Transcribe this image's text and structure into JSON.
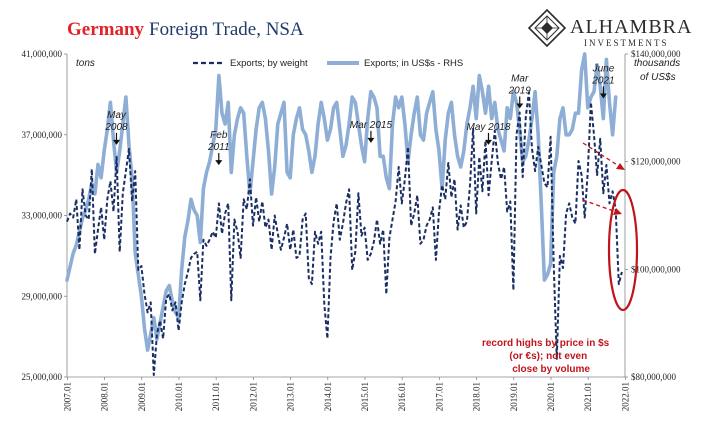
{
  "title_word1": "Germany",
  "title_rest": "Foreign Trade, NSA",
  "brand": {
    "name": "ALHAMBRA",
    "sub": "INVESTMENTS"
  },
  "colors": {
    "weight": "#1a2e62",
    "usd": "#8eaed6",
    "accent": "#c0141c",
    "title_red": "#e0242a",
    "title_blue": "#1f3a6b"
  },
  "chart_data": {
    "type": "line",
    "title": "Germany Foreign Trade, NSA",
    "left_axis": {
      "label": "tons",
      "ylim": [
        25000000,
        41000000
      ],
      "ticks": [
        "25,000,000",
        "29,000,000",
        "33,000,000",
        "37,000,000",
        "41,000,000"
      ]
    },
    "right_axis": {
      "label_line1": "thousands",
      "label_line2": "of US$s",
      "ylim": [
        80000000,
        140000000
      ],
      "ticks": [
        "$80,000,000",
        "$100,000,000",
        "$120,000,000",
        "$140,000,000"
      ]
    },
    "x_ticks": [
      "2007.01",
      "2008.01",
      "2009.01",
      "2010.01",
      "2011.01",
      "2012.01",
      "2013.01",
      "2014.01",
      "2015.01",
      "2016.01",
      "2017.01",
      "2018.01",
      "2019.01",
      "2020.01",
      "2021.01",
      "2022.01"
    ],
    "grid": false,
    "legend": "top-center",
    "series": [
      {
        "name": "Exports; by weight",
        "axis": "left",
        "style": "dashed",
        "x_start": 2007.0,
        "x_step": 0.0833333,
        "values": [
          32700000,
          33100000,
          32900000,
          33800000,
          31300000,
          34300000,
          33000000,
          32800000,
          35300000,
          31100000,
          32300000,
          33400000,
          31800000,
          33800000,
          34700000,
          33200000,
          35900000,
          31200000,
          34100000,
          35200000,
          36300000,
          33700000,
          35200000,
          30300000,
          30500000,
          29100000,
          28200000,
          28700000,
          25100000,
          27100000,
          27800000,
          26900000,
          28900000,
          29100000,
          28300000,
          28700000,
          27300000,
          28700000,
          29600000,
          30200000,
          30900000,
          31100000,
          31200000,
          28800000,
          31800000,
          31500000,
          31800000,
          32200000,
          31900000,
          33600000,
          32100000,
          33100000,
          33600000,
          28800000,
          32800000,
          32200000,
          30900000,
          33800000,
          33300000,
          34800000,
          32500000,
          33900000,
          32700000,
          33700000,
          32400000,
          32800000,
          31300000,
          33000000,
          32100000,
          31300000,
          31900000,
          32600000,
          31300000,
          32300000,
          30900000,
          31000000,
          32800000,
          33100000,
          29900000,
          29600000,
          32200000,
          31600000,
          32200000,
          28600000,
          26900000,
          30900000,
          32700000,
          33600000,
          31800000,
          32600000,
          33600000,
          34300000,
          30300000,
          31200000,
          34100000,
          32000000,
          32400000,
          30800000,
          31100000,
          31700000,
          32800000,
          31600000,
          32300000,
          29100000,
          31900000,
          32800000,
          33700000,
          35400000,
          33600000,
          34800000,
          36400000,
          32500000,
          33100000,
          34000000,
          31600000,
          31800000,
          32500000,
          32800000,
          33400000,
          30800000,
          33200000,
          34500000,
          33800000,
          35600000,
          33900000,
          34800000,
          32300000,
          33500000,
          32400000,
          32700000,
          34500000,
          37300000,
          33100000,
          35900000,
          34200000,
          36700000,
          34000000,
          35700000,
          37200000,
          35600000,
          34800000,
          35400000,
          33200000,
          33700000,
          29300000,
          37000000,
          38100000,
          34900000,
          37900000,
          39100000,
          36300000,
          35200000,
          36400000,
          35500000,
          34600000,
          34400000,
          36900000,
          30600000,
          25900000,
          31000000,
          30400000,
          33100000,
          33600000,
          32900000,
          32600000,
          35700000,
          35000000,
          32900000,
          35200000,
          38600000,
          37000000,
          35000000,
          36800000,
          34100000,
          35500000,
          33600000,
          34200000,
          33300000,
          29600000,
          30200000
        ]
      },
      {
        "name": "Exports; in US$s - RHS",
        "axis": "right",
        "style": "solid",
        "x_start": 2007.0,
        "x_step": 0.0833333,
        "values": [
          98000000,
          100500000,
          103000000,
          104500000,
          107000000,
          109500000,
          111000000,
          113000000,
          116000000,
          114000000,
          119500000,
          117000000,
          122000000,
          126000000,
          131000000,
          124000000,
          118000000,
          122000000,
          127000000,
          132000000,
          123000000,
          117000000,
          103000000,
          99000000,
          95000000,
          89000000,
          85000000,
          88000000,
          91000000,
          87000000,
          90000000,
          93000000,
          96000000,
          97000000,
          94000000,
          92000000,
          91000000,
          100000000,
          106000000,
          109000000,
          113000000,
          111000000,
          110000000,
          105000000,
          115000000,
          118000000,
          120000000,
          123000000,
          126000000,
          136000000,
          129000000,
          127000000,
          131000000,
          118000000,
          125000000,
          128000000,
          130000000,
          129000000,
          121000000,
          114000000,
          120000000,
          126000000,
          130000000,
          131000000,
          128000000,
          122000000,
          114000000,
          119000000,
          127000000,
          129000000,
          131000000,
          118000000,
          117000000,
          125000000,
          128000000,
          130000000,
          126000000,
          125000000,
          122000000,
          118000000,
          121000000,
          127000000,
          131000000,
          128000000,
          124000000,
          126000000,
          130000000,
          131000000,
          126000000,
          121000000,
          123000000,
          127000000,
          132000000,
          131000000,
          127000000,
          123000000,
          120000000,
          128000000,
          133000000,
          132000000,
          130000000,
          121000000,
          121000000,
          117000000,
          115000000,
          127000000,
          132000000,
          130000000,
          132000000,
          127000000,
          120000000,
          125000000,
          129000000,
          132000000,
          125000000,
          124000000,
          129000000,
          131000000,
          133000000,
          126000000,
          122000000,
          115000000,
          124000000,
          129000000,
          131000000,
          125000000,
          121000000,
          119000000,
          122000000,
          127000000,
          130000000,
          134000000,
          128000000,
          136000000,
          133000000,
          129000000,
          134000000,
          128000000,
          131000000,
          126000000,
          124000000,
          122000000,
          130000000,
          128000000,
          133000000,
          131000000,
          126000000,
          120000000,
          121000000,
          124000000,
          128000000,
          133000000,
          125000000,
          112000000,
          98000000,
          99000000,
          101000000,
          118000000,
          121000000,
          128000000,
          130000000,
          125000000,
          125000000,
          126000000,
          129000000,
          129000000,
          137000000,
          140000000,
          130000000,
          132000000,
          133000000,
          138000000,
          134000000,
          128000000,
          139000000,
          131000000,
          125000000,
          132000000
        ]
      }
    ],
    "annotations": [
      {
        "label_lines": [
          "May",
          "2008"
        ],
        "x": 2008.33,
        "y": 36300000,
        "axis": "left"
      },
      {
        "label_lines": [
          "Feb",
          "2011"
        ],
        "x": 2011.08,
        "y": 35300000,
        "axis": "left"
      },
      {
        "label_lines": [
          "Mar 2015"
        ],
        "x": 2015.17,
        "y": 36400000,
        "axis": "left"
      },
      {
        "label_lines": [
          "May 2018"
        ],
        "x": 2018.33,
        "y": 36300000,
        "axis": "left"
      },
      {
        "label_lines": [
          "Mar",
          "2019"
        ],
        "x": 2019.17,
        "y": 38100000,
        "axis": "left"
      },
      {
        "label_lines": [
          "June",
          "2021"
        ],
        "x": 2021.42,
        "y": 38600000,
        "axis": "left"
      }
    ],
    "note_lines": [
      "record highs by price in $s",
      "(or €s); not even",
      "close by volume"
    ]
  }
}
